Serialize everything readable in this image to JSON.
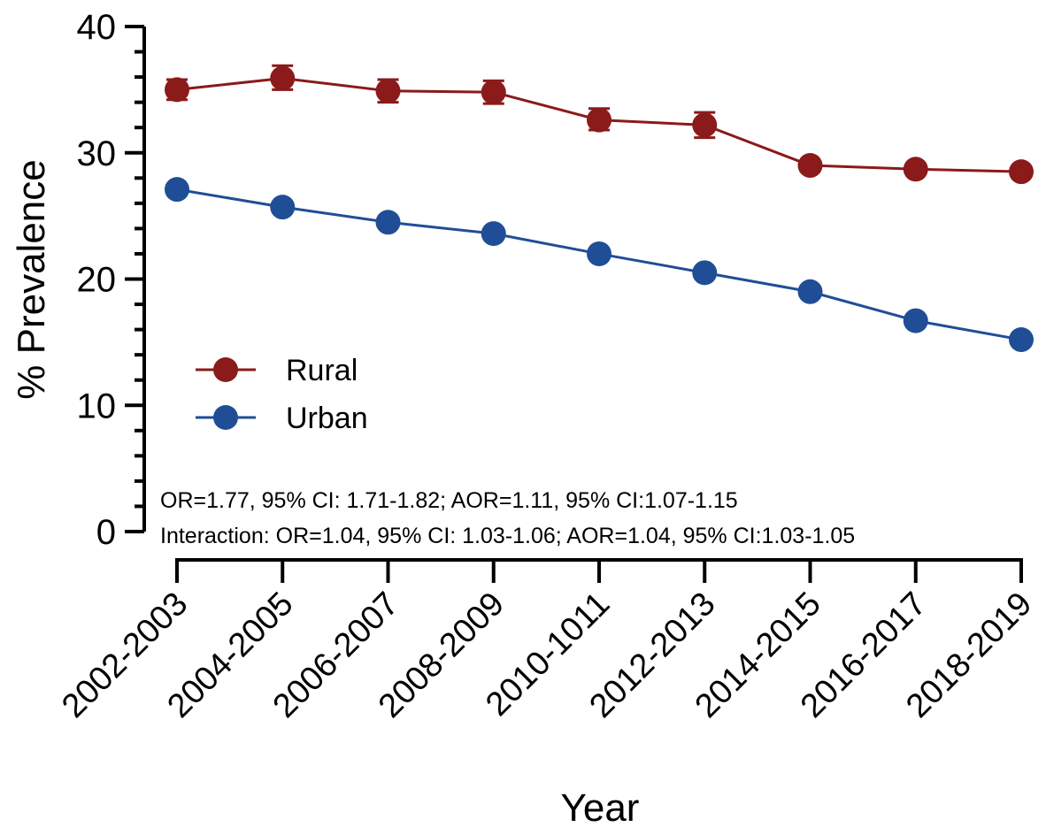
{
  "chart_data": {
    "type": "line",
    "title": "",
    "xlabel": "Year",
    "ylabel": "% Prevalence",
    "ylim": [
      0,
      40
    ],
    "yticks": [
      0,
      10,
      20,
      30,
      40
    ],
    "grid": false,
    "legend_position": "left-center",
    "categories": [
      "2002-2003",
      "2004-2005",
      "2006-2007",
      "2008-2009",
      "2010-1011",
      "2012-2013",
      "2014-2015",
      "2016-2017",
      "2018-2019"
    ],
    "series": [
      {
        "name": "Rural",
        "color": "#8b1a1a",
        "values": [
          35.0,
          35.9,
          34.9,
          34.8,
          32.6,
          32.2,
          29.0,
          28.7,
          28.5
        ],
        "error_low": [
          34.2,
          35.0,
          34.0,
          33.9,
          31.8,
          31.2,
          28.6,
          28.3,
          28.1
        ],
        "error_high": [
          35.8,
          36.9,
          35.8,
          35.7,
          33.5,
          33.2,
          29.4,
          29.1,
          28.9
        ]
      },
      {
        "name": "Urban",
        "color": "#1f4e96",
        "values": [
          27.1,
          25.7,
          24.5,
          23.6,
          22.0,
          20.5,
          19.0,
          16.7,
          15.2
        ]
      }
    ],
    "annotations": [
      "OR=1.77,  95% CI:  1.71-1.82; AOR=1.11,  95% CI:1.07-1.15",
      "Interaction:  OR=1.04,  95% CI:  1.03-1.06; AOR=1.04,  95% CI:1.03-1.05"
    ]
  }
}
